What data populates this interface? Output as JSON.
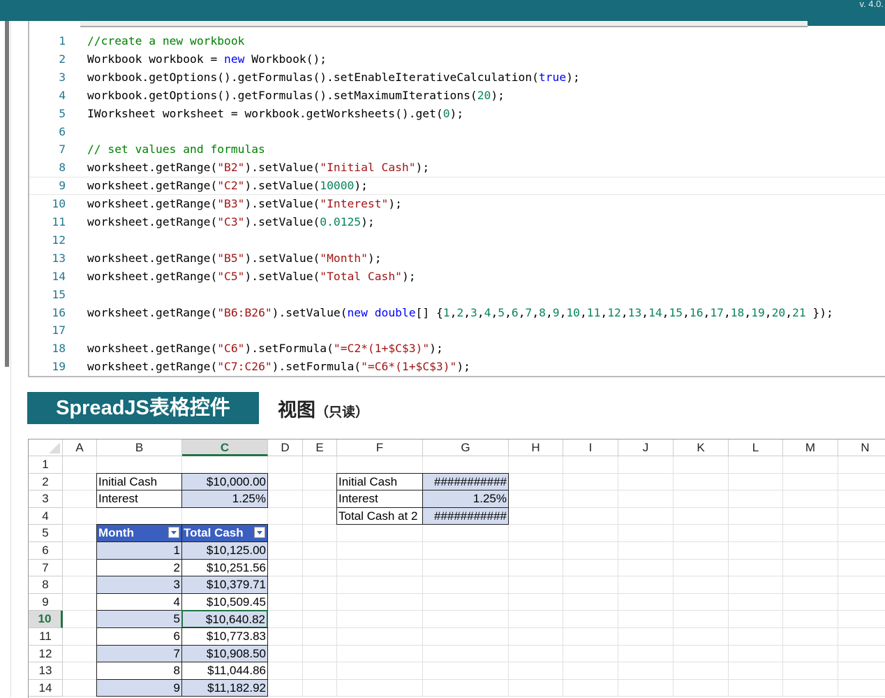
{
  "version": "v. 4.0.",
  "code_lines": [
    [
      [
        "c",
        "//create a new workbook"
      ]
    ],
    [
      [
        "p",
        "Workbook workbook = "
      ],
      [
        "k",
        "new"
      ],
      [
        "p",
        " Workbook();"
      ]
    ],
    [
      [
        "p",
        "workbook.getOptions().getFormulas().setEnableIterativeCalculation("
      ],
      [
        "k",
        "true"
      ],
      [
        "p",
        ");"
      ]
    ],
    [
      [
        "p",
        "workbook.getOptions().getFormulas().setMaximumIterations("
      ],
      [
        "n",
        "20"
      ],
      [
        "p",
        ");"
      ]
    ],
    [
      [
        "p",
        "IWorksheet worksheet = workbook.getWorksheets().get("
      ],
      [
        "n",
        "0"
      ],
      [
        "p",
        ");"
      ]
    ],
    [],
    [
      [
        "c",
        "// set values and formulas"
      ]
    ],
    [
      [
        "p",
        "worksheet.getRange("
      ],
      [
        "s",
        "\"B2\""
      ],
      [
        "p",
        ").setValue("
      ],
      [
        "s",
        "\"Initial Cash\""
      ],
      [
        "p",
        ");"
      ]
    ],
    [
      [
        "p",
        "worksheet.getRange("
      ],
      [
        "s",
        "\"C2\""
      ],
      [
        "p",
        ").setValue("
      ],
      [
        "n",
        "10000"
      ],
      [
        "p",
        ");"
      ]
    ],
    [
      [
        "p",
        "worksheet.getRange("
      ],
      [
        "s",
        "\"B3\""
      ],
      [
        "p",
        ").setValue("
      ],
      [
        "s",
        "\"Interest\""
      ],
      [
        "p",
        ");"
      ]
    ],
    [
      [
        "p",
        "worksheet.getRange("
      ],
      [
        "s",
        "\"C3\""
      ],
      [
        "p",
        ").setValue("
      ],
      [
        "n",
        "0.0125"
      ],
      [
        "p",
        ");"
      ]
    ],
    [],
    [
      [
        "p",
        "worksheet.getRange("
      ],
      [
        "s",
        "\"B5\""
      ],
      [
        "p",
        ").setValue("
      ],
      [
        "s",
        "\"Month\""
      ],
      [
        "p",
        ");"
      ]
    ],
    [
      [
        "p",
        "worksheet.getRange("
      ],
      [
        "s",
        "\"C5\""
      ],
      [
        "p",
        ").setValue("
      ],
      [
        "s",
        "\"Total Cash\""
      ],
      [
        "p",
        ");"
      ]
    ],
    [],
    [
      [
        "p",
        "worksheet.getRange("
      ],
      [
        "s",
        "\"B6:B26\""
      ],
      [
        "p",
        ").setValue("
      ],
      [
        "k",
        "new double"
      ],
      [
        "p",
        "[] {"
      ],
      [
        "n",
        "1"
      ],
      [
        "p",
        ","
      ],
      [
        "n",
        "2"
      ],
      [
        "p",
        ","
      ],
      [
        "n",
        "3"
      ],
      [
        "p",
        ","
      ],
      [
        "n",
        "4"
      ],
      [
        "p",
        ","
      ],
      [
        "n",
        "5"
      ],
      [
        "p",
        ","
      ],
      [
        "n",
        "6"
      ],
      [
        "p",
        ","
      ],
      [
        "n",
        "7"
      ],
      [
        "p",
        ","
      ],
      [
        "n",
        "8"
      ],
      [
        "p",
        ","
      ],
      [
        "n",
        "9"
      ],
      [
        "p",
        ","
      ],
      [
        "n",
        "10"
      ],
      [
        "p",
        ","
      ],
      [
        "n",
        "11"
      ],
      [
        "p",
        ","
      ],
      [
        "n",
        "12"
      ],
      [
        "p",
        ","
      ],
      [
        "n",
        "13"
      ],
      [
        "p",
        ","
      ],
      [
        "n",
        "14"
      ],
      [
        "p",
        ","
      ],
      [
        "n",
        "15"
      ],
      [
        "p",
        ","
      ],
      [
        "n",
        "16"
      ],
      [
        "p",
        ","
      ],
      [
        "n",
        "17"
      ],
      [
        "p",
        ","
      ],
      [
        "n",
        "18"
      ],
      [
        "p",
        ","
      ],
      [
        "n",
        "19"
      ],
      [
        "p",
        ","
      ],
      [
        "n",
        "20"
      ],
      [
        "p",
        ","
      ],
      [
        "n",
        "21"
      ],
      [
        "p",
        " });"
      ]
    ],
    [],
    [
      [
        "p",
        "worksheet.getRange("
      ],
      [
        "s",
        "\"C6\""
      ],
      [
        "p",
        ").setFormula("
      ],
      [
        "s",
        "\"=C2*(1+$C$3)\""
      ],
      [
        "p",
        ");"
      ]
    ],
    [
      [
        "p",
        "worksheet.getRange("
      ],
      [
        "s",
        "\"C7:C26\""
      ],
      [
        "p",
        ").setFormula("
      ],
      [
        "s",
        "\"=C6*(1+$C$3)\""
      ],
      [
        "p",
        ");"
      ]
    ]
  ],
  "banner": "SpreadJS表格控件",
  "view_title": "视图",
  "view_sub": "（只读）",
  "sheet": {
    "columns": [
      "A",
      "B",
      "C",
      "D",
      "E",
      "F",
      "G",
      "H",
      "I",
      "J",
      "K",
      "L",
      "M",
      "N"
    ],
    "rows": [
      "1",
      "2",
      "3",
      "4",
      "5",
      "6",
      "7",
      "8",
      "9",
      "10",
      "11",
      "12",
      "13",
      "14"
    ],
    "selected_col": "C",
    "selected_row": "10",
    "cells": [
      {
        "ref": "B2",
        "text": "Initial Cash"
      },
      {
        "ref": "C2",
        "text": "$10,000.00",
        "align": "right",
        "fill": "#d3dcef"
      },
      {
        "ref": "B3",
        "text": "Interest"
      },
      {
        "ref": "C3",
        "text": "1.25%",
        "align": "right",
        "fill": "#d3dcef"
      },
      {
        "ref": "F2",
        "text": "Initial Cash"
      },
      {
        "ref": "G2",
        "text": "###########",
        "align": "right",
        "fill": "#d3dcef"
      },
      {
        "ref": "F3",
        "text": "Interest"
      },
      {
        "ref": "G3",
        "text": "1.25%",
        "align": "right",
        "fill": "#d3dcef"
      },
      {
        "ref": "F4",
        "text": "Total Cash at 2"
      },
      {
        "ref": "G4",
        "text": "###########",
        "align": "right",
        "fill": "#d3dcef"
      },
      {
        "ref": "B5",
        "text": "Month",
        "header": true
      },
      {
        "ref": "C5",
        "text": "Total Cash",
        "header": true
      },
      {
        "ref": "B6",
        "text": "1",
        "align": "right",
        "fill": "#d3dcef"
      },
      {
        "ref": "C6",
        "text": "$10,125.00",
        "align": "right",
        "fill": "#d3dcef"
      },
      {
        "ref": "B7",
        "text": "2",
        "align": "right"
      },
      {
        "ref": "C7",
        "text": "$10,251.56",
        "align": "right"
      },
      {
        "ref": "B8",
        "text": "3",
        "align": "right",
        "fill": "#d3dcef"
      },
      {
        "ref": "C8",
        "text": "$10,379.71",
        "align": "right",
        "fill": "#d3dcef"
      },
      {
        "ref": "B9",
        "text": "4",
        "align": "right"
      },
      {
        "ref": "C9",
        "text": "$10,509.45",
        "align": "right"
      },
      {
        "ref": "B10",
        "text": "5",
        "align": "right",
        "fill": "#d3dcef"
      },
      {
        "ref": "C10",
        "text": "$10,640.82",
        "align": "right",
        "fill": "#d3dcef"
      },
      {
        "ref": "B11",
        "text": "6",
        "align": "right"
      },
      {
        "ref": "C11",
        "text": "$10,773.83",
        "align": "right"
      },
      {
        "ref": "B12",
        "text": "7",
        "align": "right",
        "fill": "#d3dcef"
      },
      {
        "ref": "C12",
        "text": "$10,908.50",
        "align": "right",
        "fill": "#d3dcef"
      },
      {
        "ref": "B13",
        "text": "8",
        "align": "right"
      },
      {
        "ref": "C13",
        "text": "$11,044.86",
        "align": "right"
      },
      {
        "ref": "B14",
        "text": "9",
        "align": "right",
        "fill": "#d3dcef"
      },
      {
        "ref": "C14",
        "text": "$11,182.92",
        "align": "right",
        "fill": "#d3dcef"
      }
    ],
    "colors": {
      "table_header": "#3a5fc0",
      "selection": "#217346",
      "band": "#d3dcef"
    }
  }
}
